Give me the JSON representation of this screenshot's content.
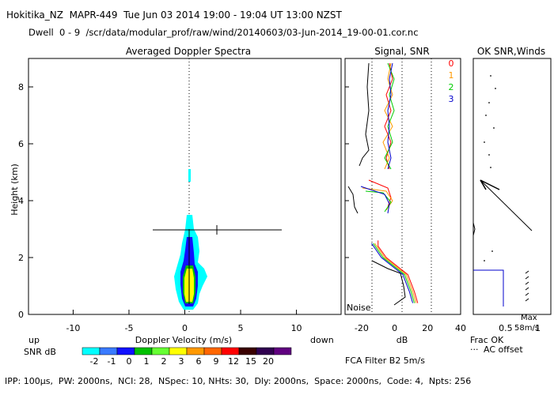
{
  "header": {
    "line1": "Hokitika_NZ  MAPR-449  Tue Jun 03 2014 19:00 - 19:04 UT 13:00 NZST",
    "line2": "Dwell  0 - 9  /scr/data/modular_prof/raw/wind/20140603/03-Jun-2014_19-00-01.cor.nc"
  },
  "footer": "IPP: 100µs,  PW: 2000ns,  NCI: 28,  NSpec: 10, NHts: 30,  Dly: 2000ns,  Space: 2000ns,  Code: 4,  Npts: 256",
  "colors": {
    "snr_scale": [
      "#00ffff",
      "#3a7bff",
      "#1010ff",
      "#00c000",
      "#66ff33",
      "#ffff00",
      "#ff9900",
      "#ff6600",
      "#ff0000",
      "#3a0000",
      "#300050",
      "#600080"
    ],
    "beams": [
      "#ff0000",
      "#ff9900",
      "#00cc00",
      "#0000cc"
    ]
  },
  "chart_data": [
    {
      "type": "heatmap",
      "title": "Averaged Doppler Spectra",
      "xlabel": "Doppler Velocity (m/s)",
      "ylabel": "Height (km)",
      "xlim": [
        -14,
        14
      ],
      "ylim": [
        0,
        9
      ],
      "x_ticks": [
        "-10",
        "-5",
        "0",
        "5",
        "10"
      ],
      "y_ticks": [
        "0",
        "2",
        "4",
        "6",
        "8"
      ],
      "left_label": "up",
      "right_label": "down",
      "legend_label": "SNR dB",
      "legend_values": [
        "-2",
        "-1",
        "0",
        "1",
        "2",
        "3",
        "6",
        "9",
        "12",
        "15",
        "20"
      ],
      "dominant_echo_heights_km": [
        0.3,
        3.5
      ],
      "error_bar": {
        "center_km": 3.0,
        "x_range": [
          -4,
          9.5
        ],
        "tick_at": 3
      }
    },
    {
      "type": "line",
      "title": "Signal, SNR",
      "xlabel": "dB",
      "xlim": [
        -30,
        40
      ],
      "x_ticks": [
        "-20",
        "0",
        "20",
        "40"
      ],
      "annotation": "Noise",
      "filter_label": "FCA Filter B2  5m/s",
      "beam_labels": [
        "0",
        "1",
        "2",
        "3"
      ],
      "series": [
        {
          "name": "0",
          "x": [
            14,
            12,
            8,
            -5,
            -10,
            -10
          ],
          "y": [
            0.4,
            0.8,
            1.4,
            2.0,
            2.4,
            2.6
          ]
        },
        {
          "name": "1",
          "x": [
            13,
            11,
            7,
            -6,
            -12
          ],
          "y": [
            0.4,
            0.8,
            1.4,
            2.0,
            2.5
          ]
        },
        {
          "name": "2",
          "x": [
            12,
            10,
            6,
            -7,
            -13
          ],
          "y": [
            0.4,
            0.8,
            1.4,
            2.0,
            2.5
          ]
        },
        {
          "name": "3",
          "x": [
            11,
            9,
            5,
            -8,
            -14
          ],
          "y": [
            0.4,
            0.8,
            1.4,
            2.0,
            2.5
          ]
        }
      ]
    },
    {
      "type": "line",
      "title": "OK SNR,Winds",
      "xlabel": "Frac OK",
      "xlim": [
        0,
        1.2
      ],
      "x_ticks": [
        "0.5",
        "1"
      ],
      "max_label": "Max",
      "max_value": "58m/s",
      "offset_legend": "AC offset"
    }
  ]
}
